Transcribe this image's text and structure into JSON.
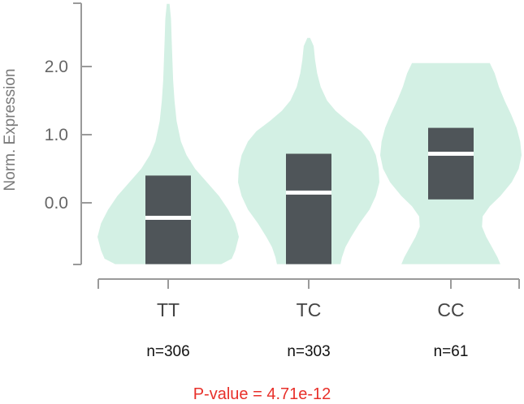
{
  "chart_data": {
    "type": "violin",
    "ylabel": "Norm. Expression",
    "y_ticks": [
      0.0,
      1.0,
      2.0
    ],
    "y_tick_labels": [
      "0.0",
      "1.0",
      "2.0"
    ],
    "categories": [
      "TT",
      "TC",
      "CC"
    ],
    "counts": [
      "n=306",
      "n=303",
      "n=61"
    ],
    "groups": [
      {
        "name": "TT",
        "min": -0.9,
        "max": 2.92,
        "q1": -0.9,
        "median": -0.22,
        "q3": 0.4,
        "density": [
          [
            -0.9,
            0.75
          ],
          [
            -0.82,
            0.9
          ],
          [
            -0.7,
            0.95
          ],
          [
            -0.5,
            1.0
          ],
          [
            -0.3,
            0.95
          ],
          [
            -0.1,
            0.85
          ],
          [
            0.1,
            0.72
          ],
          [
            0.3,
            0.55
          ],
          [
            0.5,
            0.38
          ],
          [
            0.7,
            0.26
          ],
          [
            0.9,
            0.18
          ],
          [
            1.2,
            0.12
          ],
          [
            1.5,
            0.09
          ],
          [
            1.8,
            0.07
          ],
          [
            2.1,
            0.06
          ],
          [
            2.4,
            0.05
          ],
          [
            2.7,
            0.04
          ],
          [
            2.92,
            0.02
          ]
        ]
      },
      {
        "name": "TC",
        "min": -0.9,
        "max": 2.42,
        "q1": -0.9,
        "median": 0.15,
        "q3": 0.72,
        "density": [
          [
            -0.9,
            0.45
          ],
          [
            -0.8,
            0.47
          ],
          [
            -0.65,
            0.52
          ],
          [
            -0.5,
            0.6
          ],
          [
            -0.3,
            0.72
          ],
          [
            -0.1,
            0.86
          ],
          [
            0.1,
            0.95
          ],
          [
            0.3,
            1.0
          ],
          [
            0.5,
            0.99
          ],
          [
            0.7,
            0.95
          ],
          [
            0.9,
            0.86
          ],
          [
            1.05,
            0.74
          ],
          [
            1.2,
            0.55
          ],
          [
            1.35,
            0.38
          ],
          [
            1.5,
            0.26
          ],
          [
            1.7,
            0.17
          ],
          [
            1.9,
            0.12
          ],
          [
            2.1,
            0.09
          ],
          [
            2.3,
            0.07
          ],
          [
            2.42,
            0.02
          ]
        ]
      },
      {
        "name": "CC",
        "min": -0.9,
        "max": 2.05,
        "q1": 0.05,
        "median": 0.72,
        "q3": 1.1,
        "density": [
          [
            -0.9,
            0.7
          ],
          [
            -0.8,
            0.66
          ],
          [
            -0.65,
            0.58
          ],
          [
            -0.5,
            0.5
          ],
          [
            -0.35,
            0.44
          ],
          [
            -0.2,
            0.45
          ],
          [
            -0.05,
            0.55
          ],
          [
            0.1,
            0.7
          ],
          [
            0.3,
            0.86
          ],
          [
            0.5,
            0.96
          ],
          [
            0.7,
            1.0
          ],
          [
            0.9,
            0.98
          ],
          [
            1.1,
            0.93
          ],
          [
            1.3,
            0.85
          ],
          [
            1.5,
            0.76
          ],
          [
            1.7,
            0.68
          ],
          [
            1.9,
            0.62
          ],
          [
            2.05,
            0.55
          ]
        ]
      }
    ],
    "colors": {
      "violin": "#d3f0e4",
      "box": "#4f5559",
      "median": "#ffffff",
      "axis": "#9a9a9a"
    }
  },
  "footer": {
    "pvalue": "P-value = 4.71e-12"
  }
}
